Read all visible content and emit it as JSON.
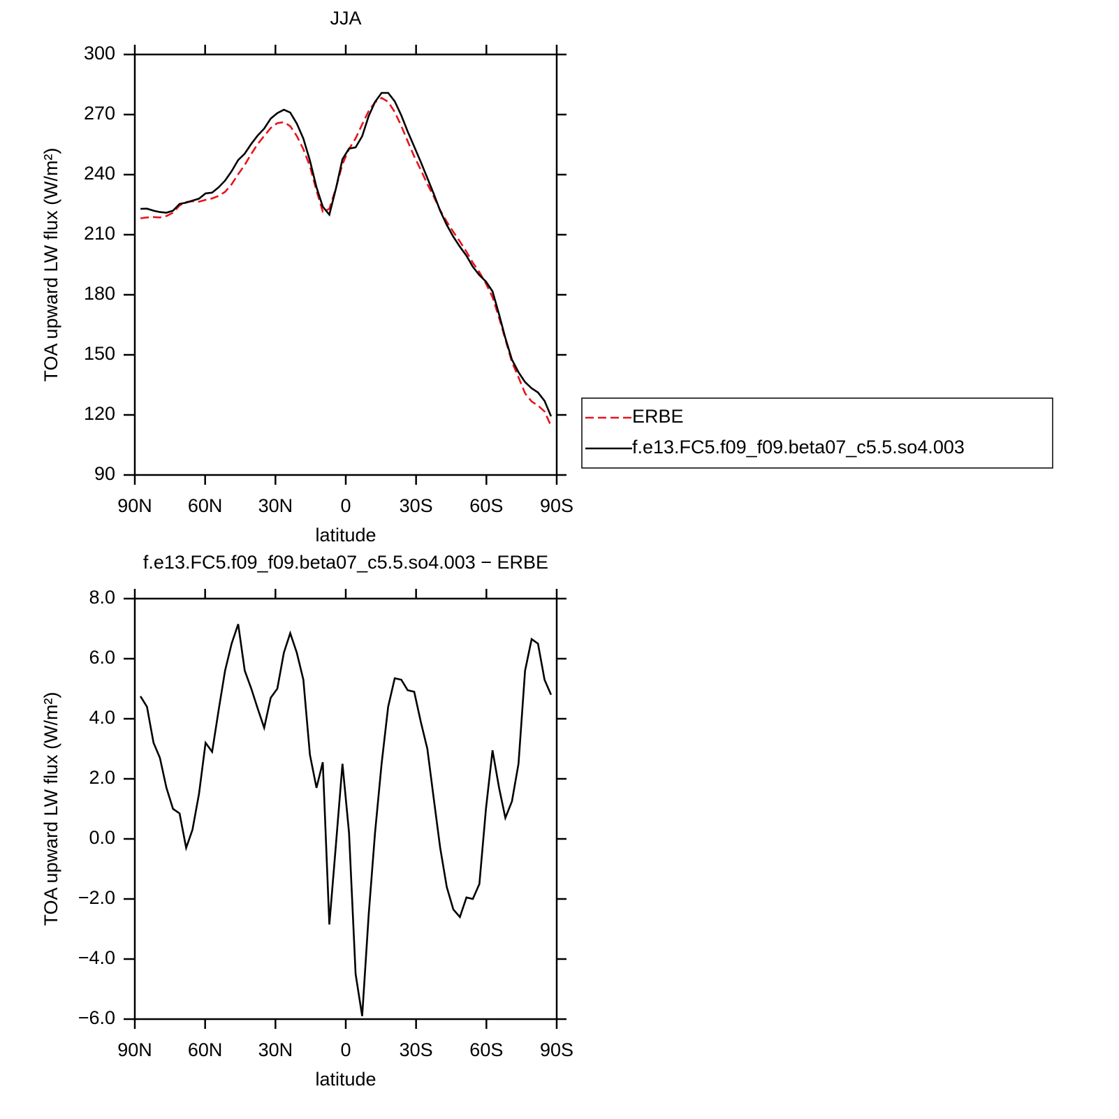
{
  "chart_data": [
    {
      "type": "line",
      "title": "JJA",
      "xlabel": "latitude",
      "ylabel": "TOA upward LW flux (W/m²)",
      "x": [
        87.6,
        84.8,
        82.0,
        79.3,
        76.5,
        73.7,
        70.9,
        68.1,
        65.4,
        62.6,
        59.8,
        57.0,
        54.2,
        51.5,
        48.7,
        45.9,
        43.1,
        40.3,
        37.6,
        34.8,
        32.0,
        29.2,
        26.4,
        23.7,
        20.9,
        18.1,
        15.3,
        12.5,
        9.8,
        7.0,
        4.2,
        1.4,
        -1.4,
        -4.2,
        -7.0,
        -9.8,
        -12.5,
        -15.3,
        -18.1,
        -20.9,
        -23.7,
        -26.4,
        -29.2,
        -32.0,
        -34.8,
        -37.6,
        -40.3,
        -43.1,
        -45.9,
        -48.7,
        -51.5,
        -54.2,
        -57.0,
        -59.8,
        -62.6,
        -65.4,
        -68.1,
        -70.9,
        -73.7,
        -76.5,
        -79.3,
        -82.0,
        -84.8,
        -87.6
      ],
      "series": [
        {
          "name": "ERBE",
          "color": "#e8141b",
          "linestyle": "dashed",
          "values": [
            218.2,
            218.6,
            218.8,
            218.6,
            219.3,
            221.0,
            224.6,
            226.3,
            226.7,
            226.5,
            227.4,
            228.1,
            229.4,
            231.4,
            235.2,
            240.2,
            244.9,
            250.4,
            255.2,
            259.3,
            263.3,
            265.7,
            266.2,
            264.2,
            259.3,
            252.7,
            244.2,
            232.0,
            221.5,
            222.9,
            233.2,
            245.2,
            252.8,
            258.1,
            265.1,
            271.8,
            276.1,
            278.3,
            276.4,
            271.3,
            264.3,
            256.7,
            249.1,
            242.4,
            235.3,
            228.9,
            222.2,
            216.5,
            211.4,
            206.6,
            201.5,
            196.0,
            191.3,
            185.6,
            178.8,
            168.5,
            157.7,
            146.4,
            138.8,
            130.8,
            126.7,
            124.7,
            121.7,
            114.5
          ]
        },
        {
          "name": "f.e13.FC5.f09_f09.beta07_c5.5.so4.003",
          "color": "#000000",
          "linestyle": "solid",
          "values": [
            222.9,
            223.0,
            222.0,
            221.3,
            221.0,
            222.0,
            225.4,
            226.0,
            227.0,
            228.0,
            230.6,
            231.0,
            233.7,
            237.0,
            241.7,
            247.3,
            250.5,
            255.4,
            259.5,
            263.0,
            268.0,
            270.7,
            272.4,
            271.0,
            265.5,
            258.0,
            247.0,
            233.7,
            224.0,
            220.0,
            233.0,
            247.7,
            253.0,
            253.6,
            259.2,
            269.3,
            276.3,
            280.8,
            280.8,
            276.6,
            269.6,
            261.6,
            254.0,
            246.3,
            238.3,
            230.2,
            221.9,
            214.9,
            209.0,
            204.0,
            199.5,
            194.0,
            189.8,
            186.6,
            181.7,
            170.2,
            158.4,
            147.6,
            141.3,
            136.4,
            133.3,
            131.2,
            127.0,
            119.3
          ]
        }
      ],
      "xlim": [
        90,
        -90
      ],
      "xticks": [
        {
          "value": 90,
          "label": "90N"
        },
        {
          "value": 60,
          "label": "60N"
        },
        {
          "value": 30,
          "label": "30N"
        },
        0,
        {
          "value": -30,
          "label": "30S"
        },
        {
          "value": -60,
          "label": "60S"
        },
        {
          "value": -90,
          "label": "90S"
        }
      ],
      "ylim": [
        90,
        300
      ],
      "yticks": [
        90,
        120,
        150,
        180,
        210,
        240,
        270,
        300
      ],
      "legend": "right"
    },
    {
      "type": "line",
      "title": "f.e13.FC5.f09_f09.beta07_c5.5.so4.003 − ERBE",
      "xlabel": "latitude",
      "ylabel": "TOA upward LW flux (W/m²)",
      "x": [
        87.6,
        84.8,
        82.0,
        79.3,
        76.5,
        73.7,
        70.9,
        68.1,
        65.4,
        62.6,
        59.8,
        57.0,
        54.2,
        51.5,
        48.7,
        45.9,
        43.1,
        40.3,
        37.6,
        34.8,
        32.0,
        29.2,
        26.4,
        23.7,
        20.9,
        18.1,
        15.3,
        12.5,
        9.8,
        7.0,
        4.2,
        1.4,
        -1.4,
        -4.2,
        -7.0,
        -9.8,
        -12.5,
        -15.3,
        -18.1,
        -20.9,
        -23.7,
        -26.4,
        -29.2,
        -32.0,
        -34.8,
        -37.6,
        -40.3,
        -43.1,
        -45.9,
        -48.7,
        -51.5,
        -54.2,
        -57.0,
        -59.8,
        -62.6,
        -65.4,
        -68.1,
        -70.9,
        -73.7,
        -76.5,
        -79.3,
        -82.0,
        -84.8,
        -87.6
      ],
      "series": [
        {
          "color": "#000000",
          "linestyle": "solid",
          "values": [
            4.75,
            4.4,
            3.2,
            2.7,
            1.7,
            1.0,
            0.85,
            -0.3,
            0.3,
            1.5,
            3.2,
            2.9,
            4.3,
            5.6,
            6.5,
            7.15,
            5.6,
            5.0,
            4.35,
            3.7,
            4.7,
            5.0,
            6.2,
            6.85,
            6.2,
            5.3,
            2.8,
            1.7,
            2.55,
            -2.85,
            -0.2,
            2.5,
            0.2,
            -4.5,
            -5.9,
            -2.5,
            0.2,
            2.5,
            4.4,
            5.35,
            5.3,
            4.95,
            4.9,
            3.9,
            3.0,
            1.3,
            -0.3,
            -1.6,
            -2.35,
            -2.6,
            -1.95,
            -2.0,
            -1.5,
            1.0,
            2.95,
            1.7,
            0.7,
            1.25,
            2.5,
            5.6,
            6.65,
            6.5,
            5.3,
            4.8
          ]
        }
      ],
      "xlim": [
        90,
        -90
      ],
      "xticks": [
        {
          "value": 90,
          "label": "90N"
        },
        {
          "value": 60,
          "label": "60N"
        },
        {
          "value": 30,
          "label": "30N"
        },
        0,
        {
          "value": -30,
          "label": "30S"
        },
        {
          "value": -60,
          "label": "60S"
        },
        {
          "value": -90,
          "label": "90S"
        }
      ],
      "ylim": [
        -6,
        8
      ],
      "yticks": [
        {
          "value": -6,
          "label": "−6.0"
        },
        {
          "value": -4,
          "label": "−4.0"
        },
        {
          "value": -2,
          "label": "−2.0"
        },
        {
          "value": 0,
          "label": "0.0"
        },
        {
          "value": 2,
          "label": "2.0"
        },
        {
          "value": 4,
          "label": "4.0"
        },
        {
          "value": 6,
          "label": "6.0"
        },
        {
          "value": 8,
          "label": "8.0"
        }
      ]
    }
  ]
}
